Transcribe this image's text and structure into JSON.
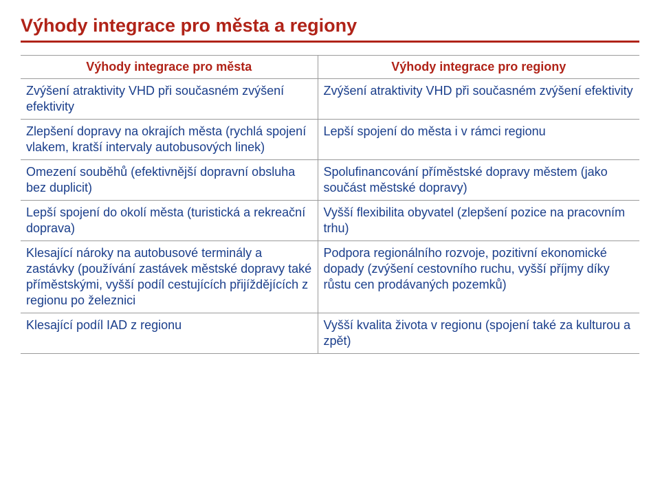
{
  "colors": {
    "title": "#b02318",
    "title_underline": "#b02318",
    "header_text": "#b02318",
    "cell_text": "#1a3e8b",
    "border": "#9a9a9a"
  },
  "title": "Výhody integrace pro města a regiony",
  "table": {
    "header_left": "Výhody integrace pro města",
    "header_right": "Výhody integrace pro regiony",
    "rows": [
      {
        "left": "Zvýšení atraktivity VHD při současném zvýšení efektivity",
        "right": "Zvýšení atraktivity VHD při současném zvýšení efektivity"
      },
      {
        "left": "Zlepšení dopravy na okrajích města (rychlá spojení vlakem, kratší intervaly autobusových linek)",
        "right": "Lepší spojení do města i v rámci regionu"
      },
      {
        "left": "Omezení souběhů (efektivnější dopravní obsluha bez duplicit)",
        "right": "Spolufinancování příměstské dopravy městem (jako součást městské dopravy)"
      },
      {
        "left": "Lepší spojení do okolí města (turistická a rekreační doprava)",
        "right": "Vyšší flexibilita obyvatel (zlepšení pozice na pracovním trhu)"
      },
      {
        "left": "Klesající nároky na autobusové terminály a zastávky (používání zastávek městské dopravy také příměstskými, vyšší podíl cestujících přijíždějících z regionu po železnici",
        "right": "Podpora regionálního rozvoje, pozitivní ekonomické dopady (zvýšení cestovního ruchu, vyšší příjmy díky růstu cen prodávaných pozemků)"
      },
      {
        "left": "Klesající podíl IAD z regionu",
        "right": "Vyšší kvalita života v regionu (spojení také za kulturou a zpět)"
      }
    ]
  }
}
